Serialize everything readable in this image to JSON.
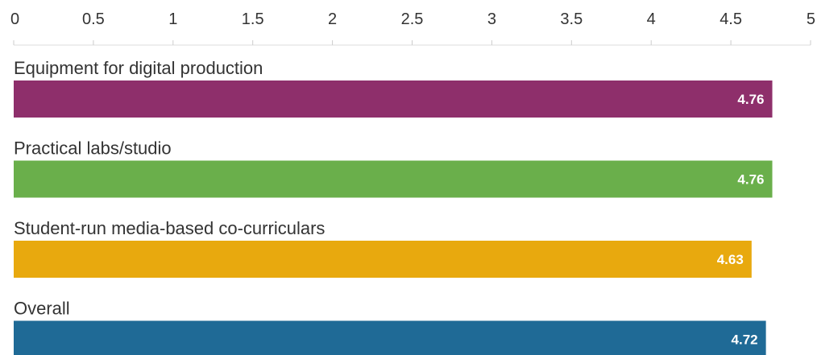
{
  "chart_data": {
    "type": "bar",
    "orientation": "horizontal",
    "categories": [
      "Equipment for digital production",
      "Practical labs/studio",
      "Student-run media-based co-curriculars",
      "Overall"
    ],
    "values": [
      4.76,
      4.76,
      4.63,
      4.72
    ],
    "value_labels": [
      "4.76",
      "4.76",
      "4.63",
      "4.72"
    ],
    "colors": [
      "#8e2f6b",
      "#6aaf4b",
      "#e8a90e",
      "#1f6a96"
    ],
    "xlim": [
      0,
      5
    ],
    "ticks": [
      0,
      0.5,
      1,
      1.5,
      2,
      2.5,
      3,
      3.5,
      4,
      4.5,
      5
    ],
    "tick_labels": [
      "0",
      "0.5",
      "1",
      "1.5",
      "2",
      "2.5",
      "3",
      "3.5",
      "4",
      "4.5",
      "5"
    ],
    "axis_position": "top",
    "grid": false,
    "legend": "none"
  }
}
